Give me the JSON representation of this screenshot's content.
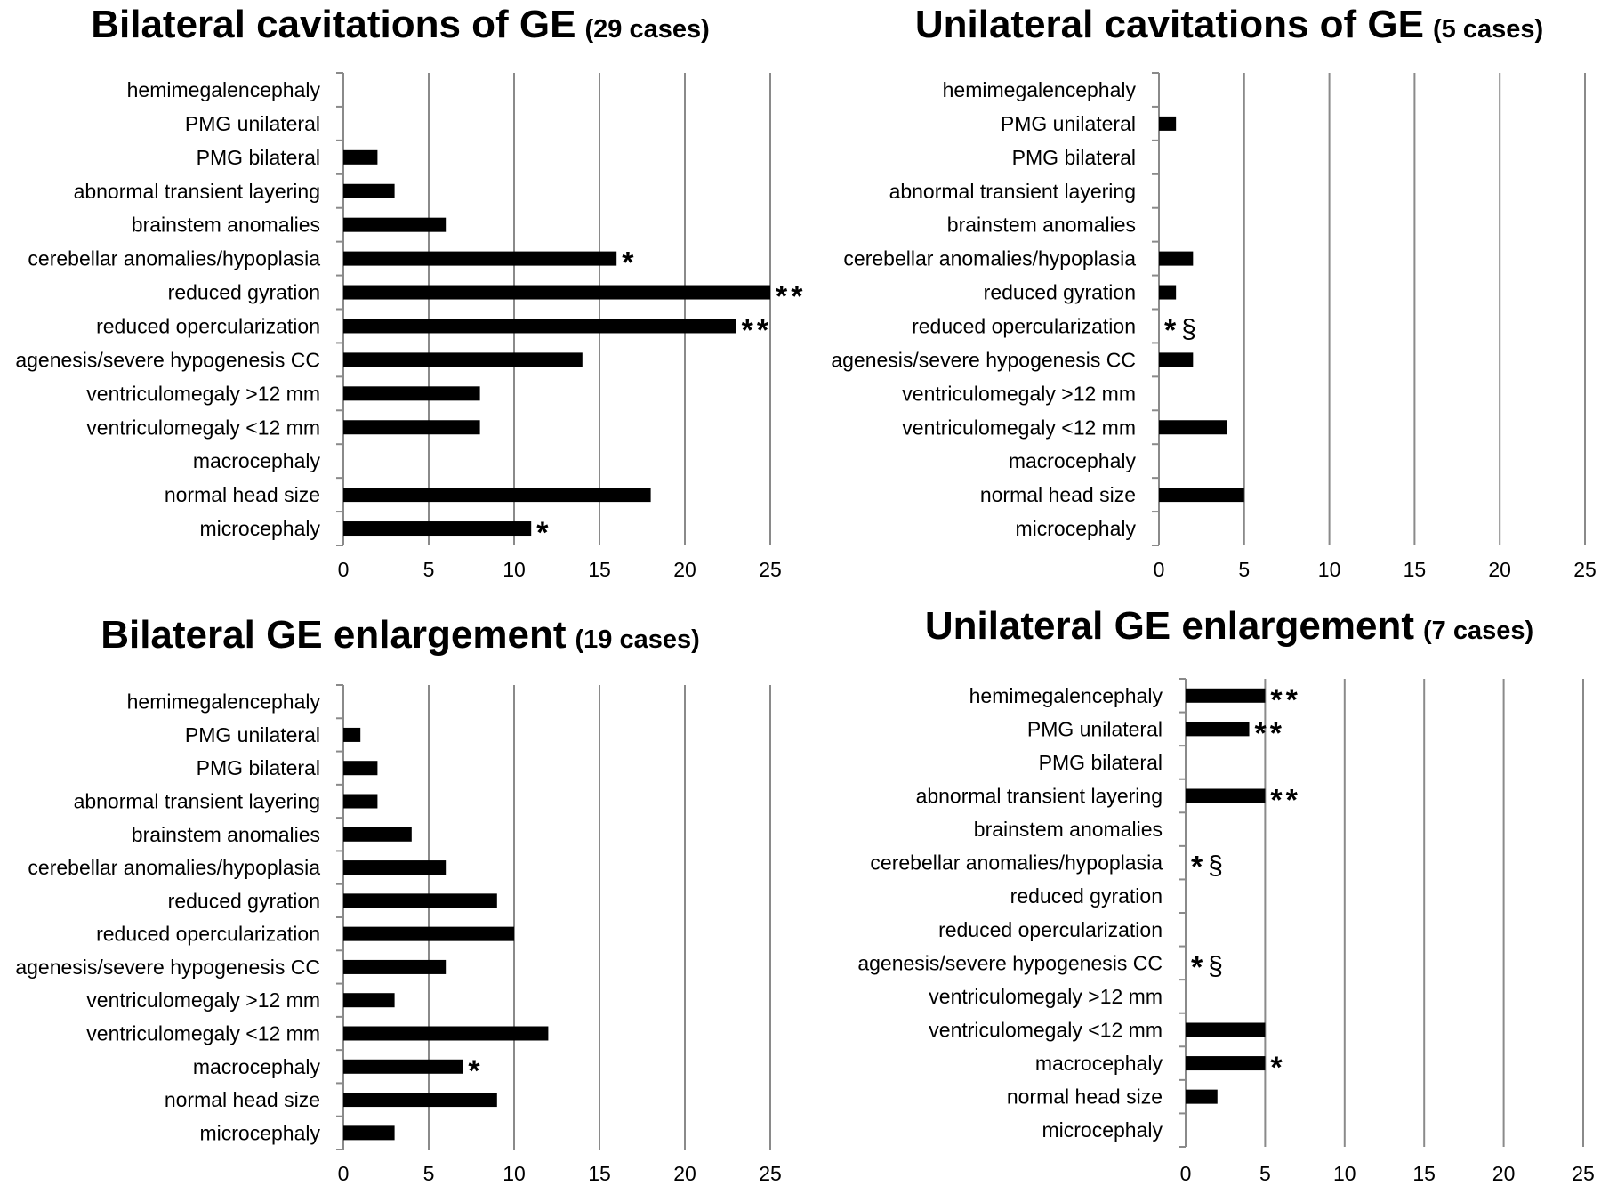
{
  "chart_data": [
    {
      "type": "bar",
      "orientation": "horizontal",
      "title": "Bilateral cavitations of GE",
      "subtitle": "(29 cases)",
      "categories": [
        "hemimegalencephaly",
        "PMG unilateral",
        "PMG bilateral",
        "abnormal transient layering",
        "brainstem anomalies",
        "cerebellar anomalies/hypoplasia",
        "reduced gyration",
        "reduced opercularization",
        "agenesis/severe hypogenesis CC",
        "ventriculomegaly >12 mm",
        "ventriculomegaly <12 mm",
        "macrocephaly",
        "normal head size",
        "microcephaly"
      ],
      "values": [
        0,
        0,
        2,
        3,
        6,
        16,
        25,
        23,
        14,
        8,
        8,
        0,
        18,
        11
      ],
      "annotations": [
        "",
        "",
        "",
        "",
        "",
        "*",
        "**",
        "**",
        "",
        "",
        "",
        "",
        "",
        "*"
      ],
      "xlim": [
        0,
        25
      ],
      "xticks": [
        "0",
        "5",
        "10",
        "15",
        "20",
        "25"
      ],
      "grid": true,
      "bar_color": "#000000"
    },
    {
      "type": "bar",
      "orientation": "horizontal",
      "title": "Unilateral cavitations of GE",
      "subtitle": "(5 cases)",
      "categories": [
        "hemimegalencephaly",
        "PMG unilateral",
        "PMG bilateral",
        "abnormal transient layering",
        "brainstem anomalies",
        "cerebellar anomalies/hypoplasia",
        "reduced gyration",
        "reduced opercularization",
        "agenesis/severe hypogenesis CC",
        "ventriculomegaly >12 mm",
        "ventriculomegaly <12 mm",
        "macrocephaly",
        "normal head size",
        "microcephaly"
      ],
      "values": [
        0,
        1,
        0,
        0,
        0,
        2,
        1,
        0,
        2,
        0,
        4,
        0,
        5,
        0
      ],
      "annotations": [
        "",
        "",
        "",
        "",
        "",
        "",
        "",
        "*§",
        "",
        "",
        "",
        "",
        "",
        ""
      ],
      "xlim": [
        0,
        25
      ],
      "xticks": [
        "0",
        "5",
        "10",
        "15",
        "20",
        "25"
      ],
      "grid": true,
      "bar_color": "#000000"
    },
    {
      "type": "bar",
      "orientation": "horizontal",
      "title": "Bilateral GE enlargement",
      "subtitle": "(19 cases)",
      "categories": [
        "hemimegalencephaly",
        "PMG unilateral",
        "PMG bilateral",
        "abnormal transient layering",
        "brainstem anomalies",
        "cerebellar anomalies/hypoplasia",
        "reduced gyration",
        "reduced opercularization",
        "agenesis/severe hypogenesis CC",
        "ventriculomegaly >12 mm",
        "ventriculomegaly <12 mm",
        "macrocephaly",
        "normal head size",
        "microcephaly"
      ],
      "values": [
        0,
        1,
        2,
        2,
        4,
        6,
        9,
        10,
        6,
        3,
        12,
        7,
        9,
        3
      ],
      "annotations": [
        "",
        "",
        "",
        "",
        "",
        "",
        "",
        "",
        "",
        "",
        "",
        "*",
        "",
        ""
      ],
      "xlim": [
        0,
        25
      ],
      "xticks": [
        "0",
        "5",
        "10",
        "15",
        "20",
        "25"
      ],
      "grid": true,
      "bar_color": "#000000"
    },
    {
      "type": "bar",
      "orientation": "horizontal",
      "title": "Unilateral GE enlargement",
      "subtitle": "(7 cases)",
      "categories": [
        "hemimegalencephaly",
        "PMG unilateral",
        "PMG bilateral",
        "abnormal transient layering",
        "brainstem anomalies",
        "cerebellar anomalies/hypoplasia",
        "reduced gyration",
        "reduced opercularization",
        "agenesis/severe hypogenesis CC",
        "ventriculomegaly >12 mm",
        "ventriculomegaly <12 mm",
        "macrocephaly",
        "normal head size",
        "microcephaly"
      ],
      "values": [
        5,
        4,
        0,
        5,
        0,
        0,
        0,
        0,
        0,
        0,
        5,
        5,
        2,
        0
      ],
      "annotations": [
        "**",
        "**",
        "",
        "**",
        "",
        "*§",
        "",
        "",
        "*§",
        "",
        "",
        "*",
        "",
        ""
      ],
      "xlim": [
        0,
        25
      ],
      "xticks": [
        "0",
        "5",
        "10",
        "15",
        "20",
        "25"
      ],
      "grid": true,
      "bar_color": "#000000"
    }
  ]
}
